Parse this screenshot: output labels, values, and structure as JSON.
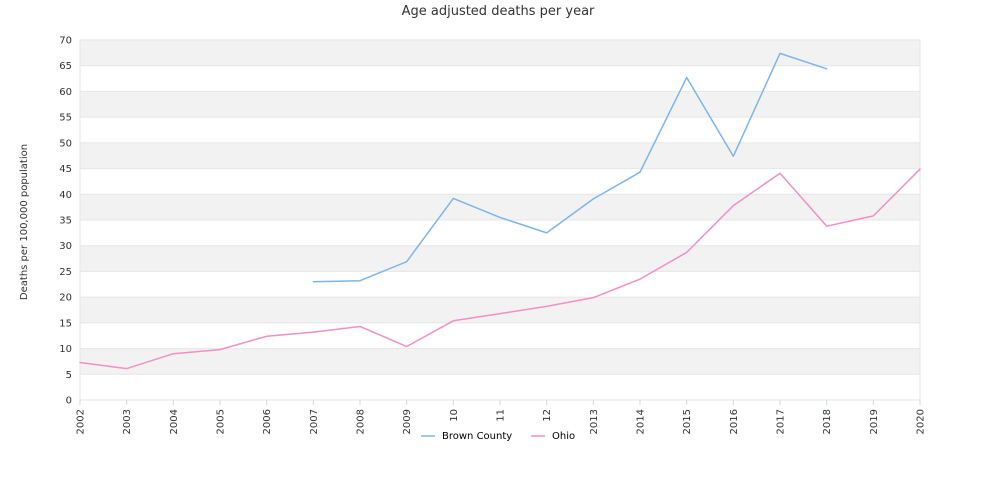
{
  "chart_data": {
    "type": "line",
    "title": "Age adjusted deaths per year",
    "xlabel": "",
    "ylabel": "Deaths per 100,000 population",
    "x": [
      "2002",
      "2003",
      "2004",
      "2005",
      "2006",
      "2007",
      "2008",
      "2009",
      "10",
      "11",
      "12",
      "2013",
      "2014",
      "2015",
      "2016",
      "2017",
      "2018",
      "2019",
      "2020"
    ],
    "ylim": [
      0,
      70
    ],
    "yticks": [
      0,
      5,
      10,
      15,
      20,
      25,
      30,
      35,
      40,
      45,
      50,
      55,
      60,
      65,
      70
    ],
    "grid": true,
    "legend_position": "bottom",
    "series": [
      {
        "name": "Brown County",
        "color": "#7cb5ec",
        "values": [
          null,
          null,
          null,
          null,
          null,
          23,
          23.2,
          26.9,
          39.2,
          35.5,
          32.5,
          39.1,
          44.3,
          62.7,
          47.4,
          67.4,
          64.4,
          null,
          null
        ]
      },
      {
        "name": "Ohio",
        "color": "#f28fc5",
        "values": [
          7.3,
          6.1,
          9,
          9.8,
          12.4,
          13.2,
          14.3,
          10.4,
          15.4,
          16.8,
          18.2,
          19.9,
          23.5,
          28.7,
          37.8,
          44.1,
          33.8,
          35.8,
          44.9
        ]
      }
    ]
  }
}
